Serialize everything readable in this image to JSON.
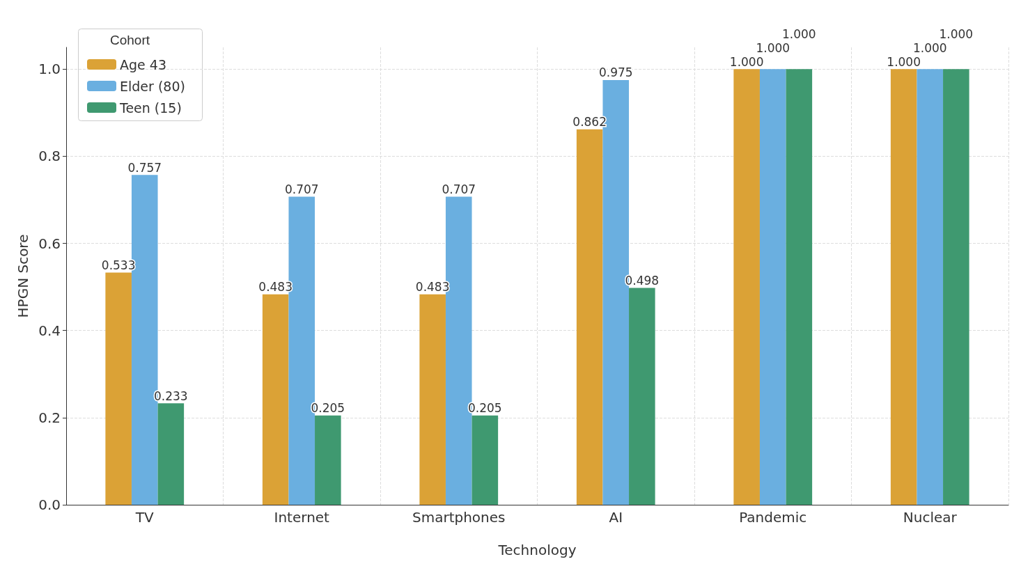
{
  "chart_data": {
    "type": "bar",
    "xlabel": "Technology",
    "ylabel": "HPGN Score",
    "legend_title": "Cohort",
    "legend": "top left",
    "grid": true,
    "categories": [
      "TV",
      "Internet",
      "Smartphones",
      "AI",
      "Pandemic",
      "Nuclear"
    ],
    "series": [
      {
        "name": "Age 43",
        "color": "#dba236",
        "values": [
          0.533,
          0.483,
          0.483,
          0.862,
          1.0,
          1.0
        ],
        "value_labels": [
          "0.533",
          "0.483",
          "0.483",
          "0.862",
          "1.000",
          "1.000"
        ]
      },
      {
        "name": "Elder (80)",
        "color": "#6aafe0",
        "values": [
          0.757,
          0.707,
          0.707,
          0.975,
          1.0,
          1.0
        ],
        "value_labels": [
          "0.757",
          "0.707",
          "0.707",
          "0.975",
          "1.000",
          "1.000"
        ]
      },
      {
        "name": "Teen (15)",
        "color": "#3f9970",
        "values": [
          0.233,
          0.205,
          0.205,
          0.498,
          1.0,
          1.0
        ],
        "value_labels": [
          "0.233",
          "0.205",
          "0.205",
          "0.498",
          "1.000",
          "1.000"
        ]
      }
    ],
    "ylim": [
      0,
      1.05
    ],
    "yticks": [
      {
        "value": 0,
        "label": "0.0"
      },
      {
        "value": 0.2,
        "label": "0.2"
      },
      {
        "value": 0.4,
        "label": "0.4"
      },
      {
        "value": 0.6,
        "label": "0.6"
      },
      {
        "value": 0.8,
        "label": "0.8"
      },
      {
        "value": 1.0,
        "label": "1.0"
      }
    ]
  }
}
